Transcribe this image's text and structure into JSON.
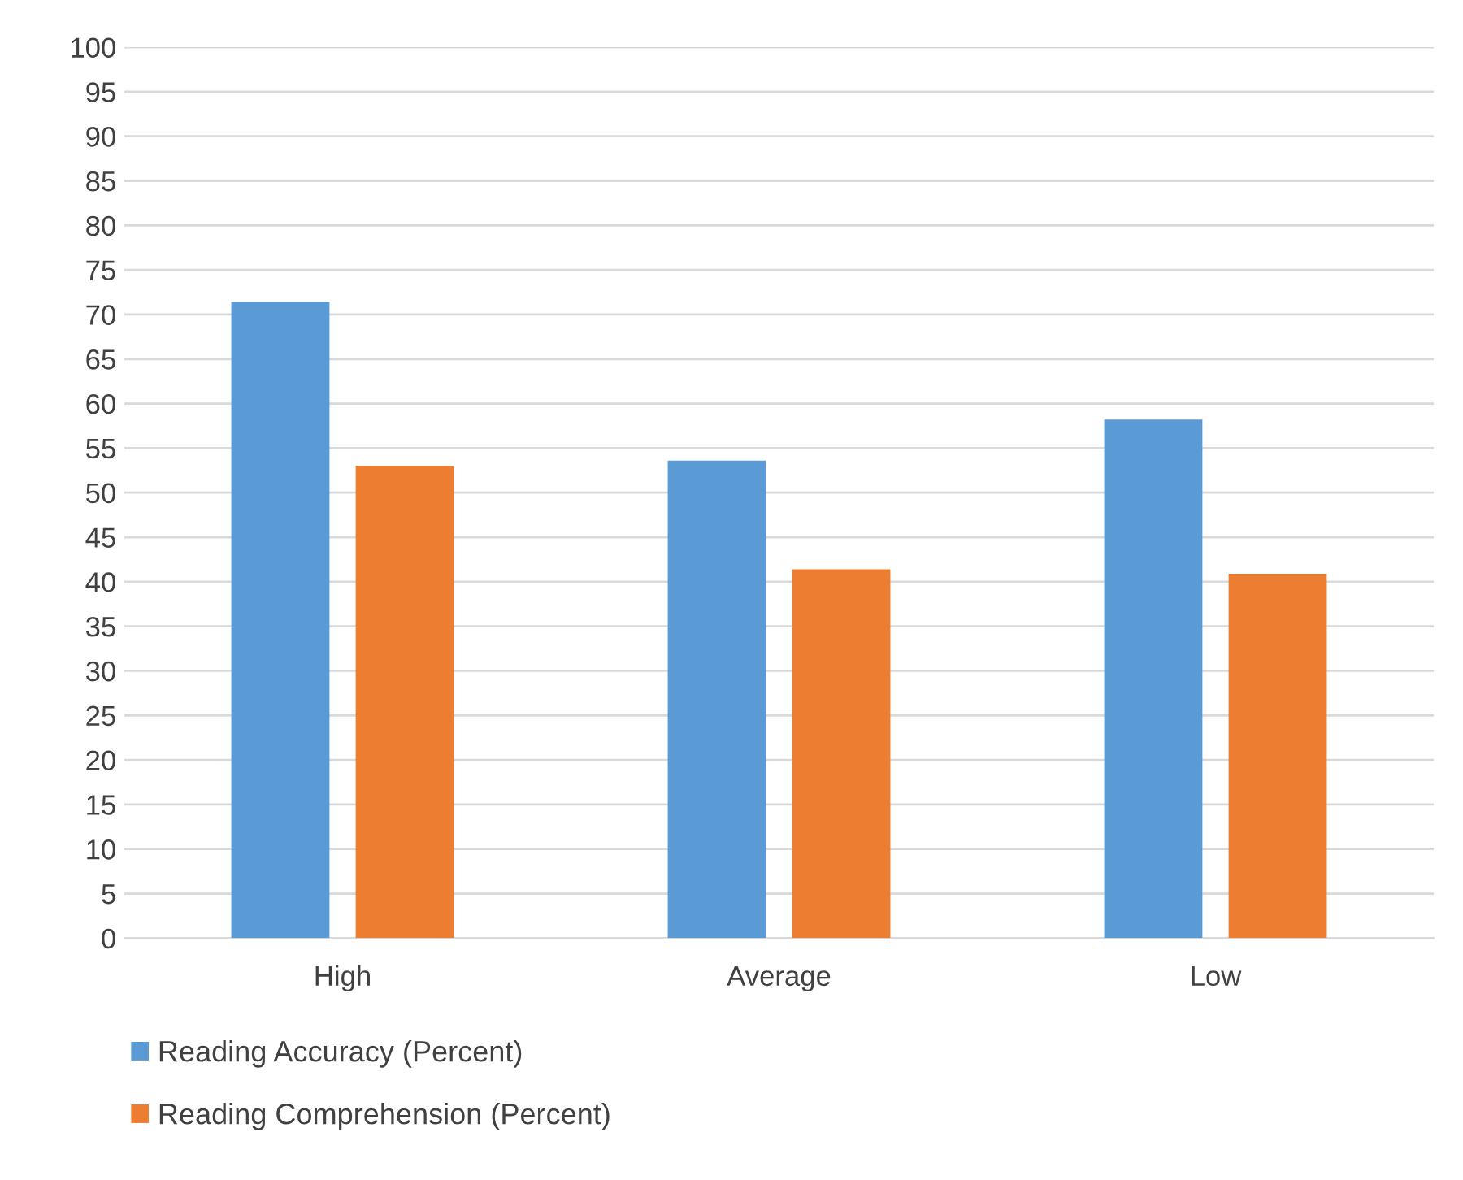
{
  "chart_data": {
    "type": "bar",
    "categories": [
      "High",
      "Average",
      "Low"
    ],
    "series": [
      {
        "name": "Reading Accuracy (Percent)",
        "color": "#5b9bd5",
        "values": [
          71.4,
          53.6,
          58.2
        ]
      },
      {
        "name": "Reading Comprehension (Percent)",
        "color": "#ed7d31",
        "values": [
          53.0,
          41.4,
          40.9
        ]
      }
    ],
    "ylim": [
      0,
      100
    ],
    "yticks": [
      0,
      5,
      10,
      15,
      20,
      25,
      30,
      35,
      40,
      45,
      50,
      55,
      60,
      65,
      70,
      75,
      80,
      85,
      90,
      95,
      100
    ],
    "grid": "y",
    "legend": "bottom"
  }
}
